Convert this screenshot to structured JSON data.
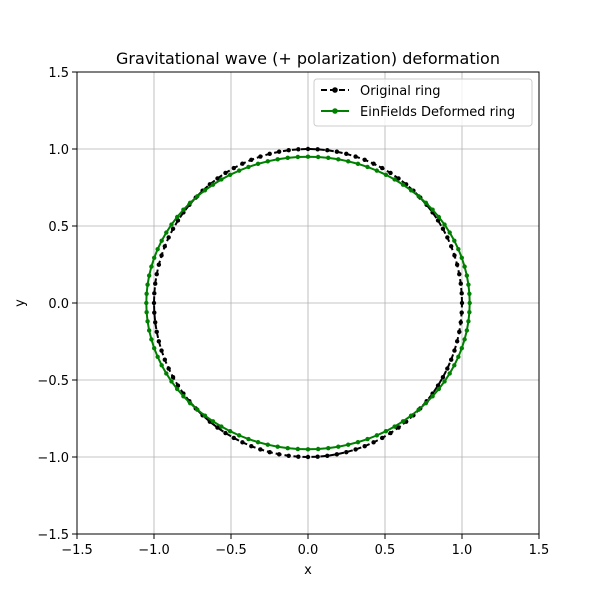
{
  "chart_data": {
    "type": "line",
    "title": "Gravitational wave (+ polarization) deformation",
    "xlabel": "x",
    "ylabel": "y",
    "xlim": [
      -1.5,
      1.5
    ],
    "ylim": [
      -1.5,
      1.5
    ],
    "xticks": [
      -1.5,
      -1.0,
      -0.5,
      0.0,
      0.5,
      1.0,
      1.5
    ],
    "yticks": [
      -1.5,
      -1.0,
      -0.5,
      0.0,
      0.5,
      1.0,
      1.5
    ],
    "xtick_labels": [
      "−1.5",
      "−1.0",
      "−0.5",
      "0.0",
      "0.5",
      "1.0",
      "1.5"
    ],
    "ytick_labels": [
      "−1.5",
      "−1.0",
      "−0.5",
      "0.0",
      "0.5",
      "1.0",
      "1.5"
    ],
    "grid": true,
    "legend_position": "top-right",
    "series": [
      {
        "name": "Original ring",
        "shape": "ellipse",
        "rx": 1.0,
        "ry": 1.0,
        "points": 100,
        "color": "#000000",
        "linestyle": "dashed",
        "marker": "circle"
      },
      {
        "name": "EinFields Deformed ring",
        "shape": "ellipse",
        "rx": 1.05,
        "ry": 0.95,
        "points": 100,
        "color": "#008000",
        "linestyle": "solid",
        "marker": "circle"
      }
    ]
  }
}
